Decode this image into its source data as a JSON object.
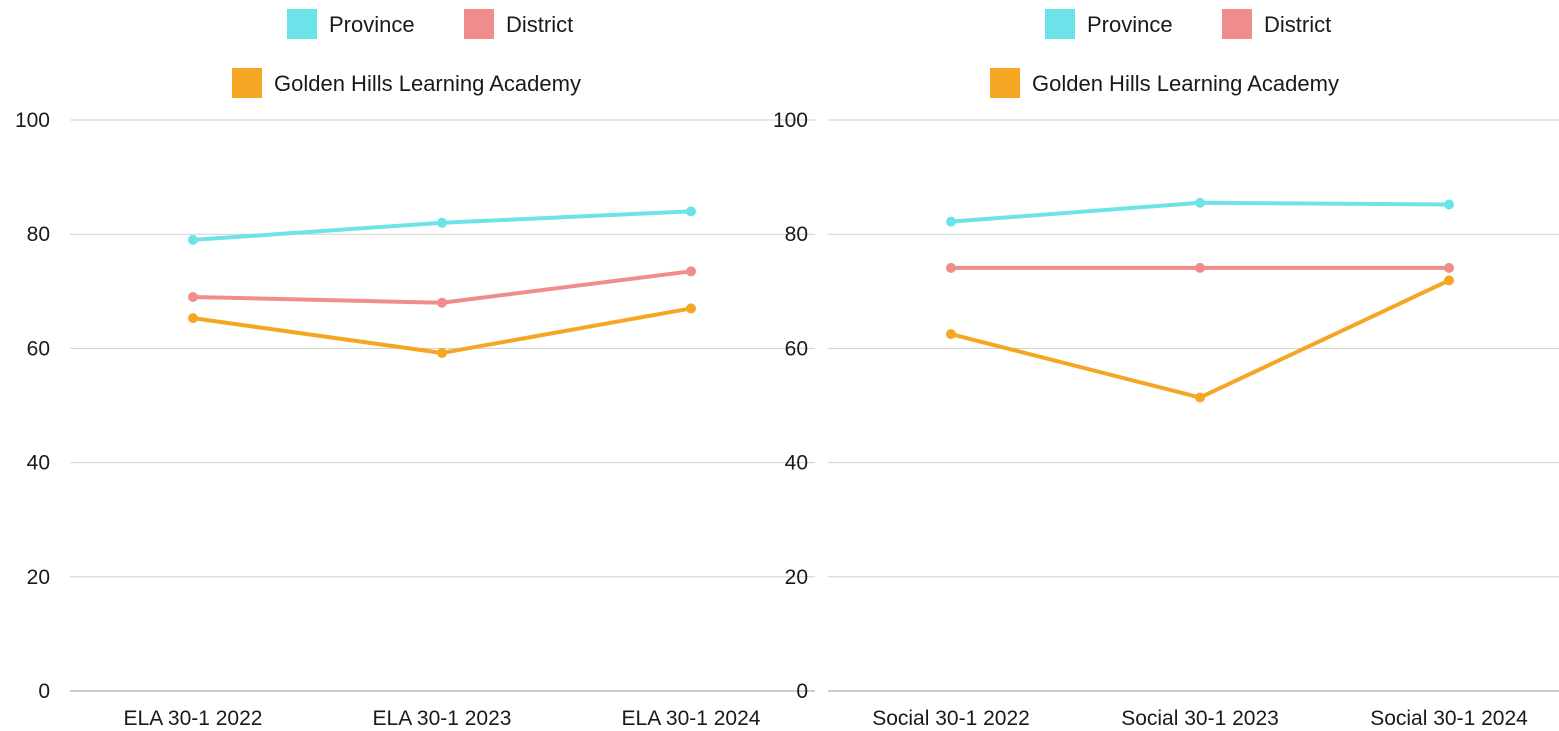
{
  "chart_data": [
    {
      "type": "line",
      "categories": [
        "ELA 30-1 2022",
        "ELA 30-1 2023",
        "ELA 30-1 2024"
      ],
      "ylim": [
        0,
        100
      ],
      "yticks": [
        0,
        20,
        40,
        60,
        80,
        100
      ],
      "grid": true,
      "legend_position": "top-center",
      "series": [
        {
          "name": "Province",
          "values": [
            79.0,
            82.0,
            84.0
          ],
          "color": "#6ce3e8"
        },
        {
          "name": "District",
          "values": [
            69.0,
            68.0,
            73.5
          ],
          "color": "#f08c8c"
        },
        {
          "name": "Golden Hills Learning Academy",
          "values": [
            65.3,
            59.2,
            67.0
          ],
          "color": "#f5a623"
        }
      ]
    },
    {
      "type": "line",
      "categories": [
        "Social 30-1 2022",
        "Social 30-1 2023",
        "Social 30-1 2024"
      ],
      "ylim": [
        0,
        100
      ],
      "yticks": [
        0,
        20,
        40,
        60,
        80,
        100
      ],
      "grid": true,
      "legend_position": "top-center",
      "series": [
        {
          "name": "Province",
          "values": [
            82.2,
            85.5,
            85.2
          ],
          "color": "#6ce3e8"
        },
        {
          "name": "District",
          "values": [
            74.1,
            74.1,
            74.1
          ],
          "color": "#f08c8c"
        },
        {
          "name": "Golden Hills Learning Academy",
          "values": [
            62.5,
            51.4,
            71.9
          ],
          "color": "#f5a623"
        }
      ]
    }
  ]
}
